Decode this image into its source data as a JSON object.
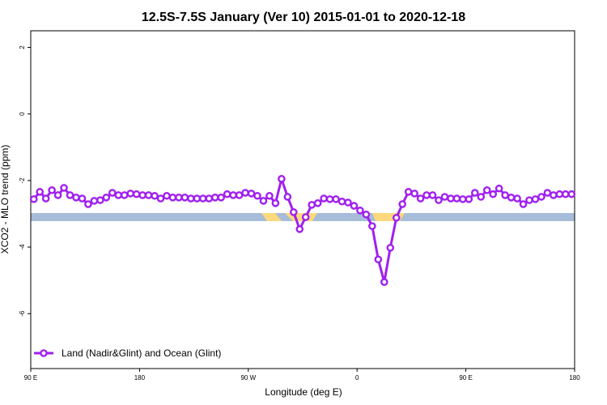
{
  "chart_data": {
    "type": "line",
    "title": "12.5S-7.5S January (Ver 10)   2015-01-01 to 2020-12-18",
    "x_label": "Longitude (deg E)",
    "y_label": "XCO2 - MLO trend (ppm)",
    "xlim": [
      90,
      540
    ],
    "ylim": [
      -7.65,
      2.5
    ],
    "xticks": [
      {
        "value": 90,
        "label": "90 E"
      },
      180,
      {
        "value": 270,
        "label": "90 W"
      },
      {
        "value": 360,
        "label": "0"
      },
      {
        "value": 450,
        "label": "90 E"
      },
      {
        "value": 540,
        "label": "180"
      }
    ],
    "yticks": [
      2,
      0,
      -2,
      -4,
      -6
    ],
    "legend": "bottomleft",
    "x": [
      92.5,
      97.5,
      102.5,
      107.5,
      112.5,
      117.5,
      122.5,
      127.5,
      132.5,
      137.5,
      142.5,
      147.5,
      152.5,
      157.5,
      162.5,
      167.5,
      172.5,
      177.5,
      182.5,
      187.5,
      192.5,
      197.5,
      202.5,
      207.5,
      212.5,
      217.5,
      222.5,
      227.5,
      232.5,
      237.5,
      242.5,
      247.5,
      252.5,
      257.5,
      262.5,
      267.5,
      272.5,
      277.5,
      282.5,
      287.5,
      292.5,
      297.5,
      302.5,
      307.5,
      312.5,
      317.5,
      322.5,
      327.5,
      332.5,
      337.5,
      342.5,
      347.5,
      352.5,
      357.5,
      362.5,
      367.5,
      372.5,
      377.5,
      382.5,
      387.5,
      392.5,
      397.5,
      402.5,
      407.5,
      412.5,
      417.5,
      422.5,
      427.5,
      432.5,
      437.5,
      442.5,
      447.5,
      452.5,
      457.5,
      462.5,
      467.5,
      472.5,
      477.5,
      482.5,
      487.5,
      492.5,
      497.5,
      502.5,
      507.5,
      512.5,
      517.5,
      522.5,
      527.5,
      532.5,
      537.5
    ],
    "series": [
      {
        "name": "Land (Nadir&Glint) and Ocean (Glint)",
        "color": "#a020f0",
        "values": [
          -2.56,
          -2.34,
          -2.54,
          -2.29,
          -2.44,
          -2.22,
          -2.44,
          -2.51,
          -2.54,
          -2.71,
          -2.61,
          -2.59,
          -2.51,
          -2.37,
          -2.44,
          -2.44,
          -2.39,
          -2.41,
          -2.44,
          -2.44,
          -2.46,
          -2.54,
          -2.46,
          -2.51,
          -2.51,
          -2.51,
          -2.54,
          -2.54,
          -2.54,
          -2.54,
          -2.51,
          -2.51,
          -2.41,
          -2.44,
          -2.44,
          -2.37,
          -2.39,
          -2.46,
          -2.61,
          -2.46,
          -2.68,
          -1.95,
          -2.49,
          -2.95,
          -3.46,
          -3.1,
          -2.73,
          -2.68,
          -2.54,
          -2.56,
          -2.56,
          -2.63,
          -2.66,
          -2.76,
          -2.9,
          -3.02,
          -3.37,
          -4.37,
          -5.05,
          -4.02,
          -3.12,
          -2.71,
          -2.34,
          -2.39,
          -2.54,
          -2.44,
          -2.44,
          -2.59,
          -2.49,
          -2.54,
          -2.54,
          -2.56,
          -2.56,
          -2.37,
          -2.49,
          -2.29,
          -2.41,
          -2.24,
          -2.44,
          -2.51,
          -2.54,
          -2.71,
          -2.59,
          -2.56,
          -2.49,
          -2.37,
          -2.44,
          -2.41,
          -2.41,
          -2.41
        ]
      }
    ]
  }
}
